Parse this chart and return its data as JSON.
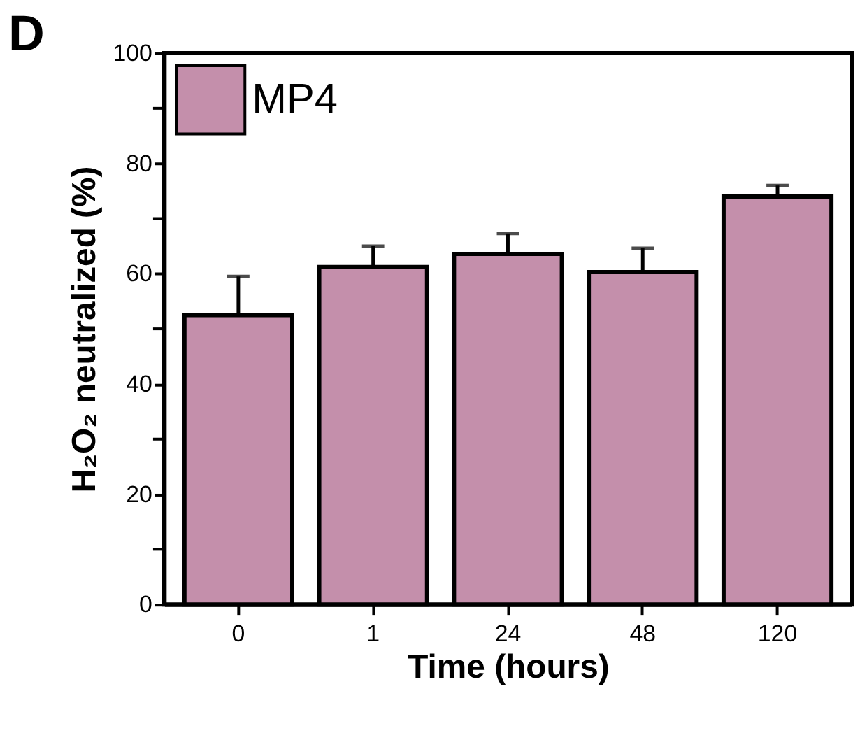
{
  "chart_data": {
    "type": "bar",
    "xlabel": "Time (hours)",
    "ylabel": "H₂O₂ neutralized (%)",
    "categories": [
      "0",
      "1",
      "24",
      "48",
      "120"
    ],
    "series": [
      {
        "name": "MP4",
        "color": "#c48fab",
        "values": [
          52.5,
          61.2,
          63.6,
          60.3,
          74.0
        ],
        "errors": [
          [
            52.5,
            59.5
          ],
          [
            61.2,
            65.0
          ],
          [
            63.6,
            67.3
          ],
          [
            60.3,
            64.6
          ],
          [
            74.0,
            76.0
          ]
        ]
      }
    ],
    "ylim": [
      0,
      100
    ],
    "yticks": [
      0,
      {
        "value": 10,
        "label": null
      },
      20,
      {
        "value": 30,
        "label": null
      },
      40,
      {
        "value": 50,
        "label": null
      },
      60,
      {
        "value": 70,
        "label": null
      },
      80,
      {
        "value": 90,
        "label": null
      },
      100
    ],
    "legend": "top left",
    "grid": false,
    "annotations": [
      "D"
    ]
  }
}
